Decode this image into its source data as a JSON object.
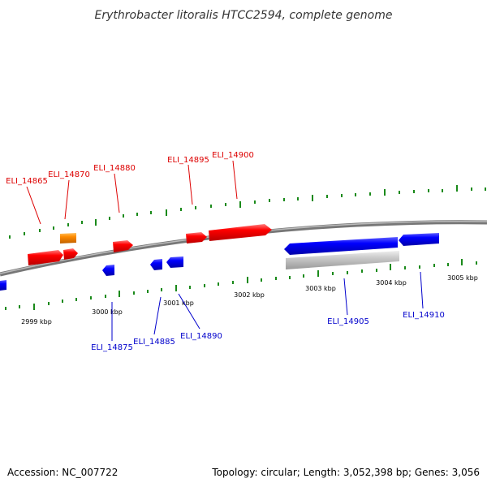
{
  "title": "Erythrobacter litoralis HTCC2594, complete genome",
  "footer": {
    "accession": "Accession: NC_007722",
    "summary": "Topology: circular; Length: 3,052,398 bp; Genes: 3,056"
  },
  "colors": {
    "forward_gene": "#ff0000",
    "forward_gene_alt": "#ff8c00",
    "reverse_gene": "#0000ff",
    "pseudo_gene": "#c0c0c0",
    "tick": "#1a8a1a",
    "backbone": "#888888"
  },
  "scale_labels": [
    "2999 kbp",
    "3000 kbp",
    "3001 kbp",
    "3002 kbp",
    "3003 kbp",
    "3004 kbp",
    "3005 kbp"
  ],
  "forward_labels": [
    "ELI_14865",
    "ELI_14870",
    "ELI_14880",
    "ELI_14895",
    "ELI_14900"
  ],
  "reverse_labels": [
    "ELI_14875",
    "ELI_14885",
    "ELI_14890",
    "ELI_14905",
    "ELI_14910"
  ]
}
